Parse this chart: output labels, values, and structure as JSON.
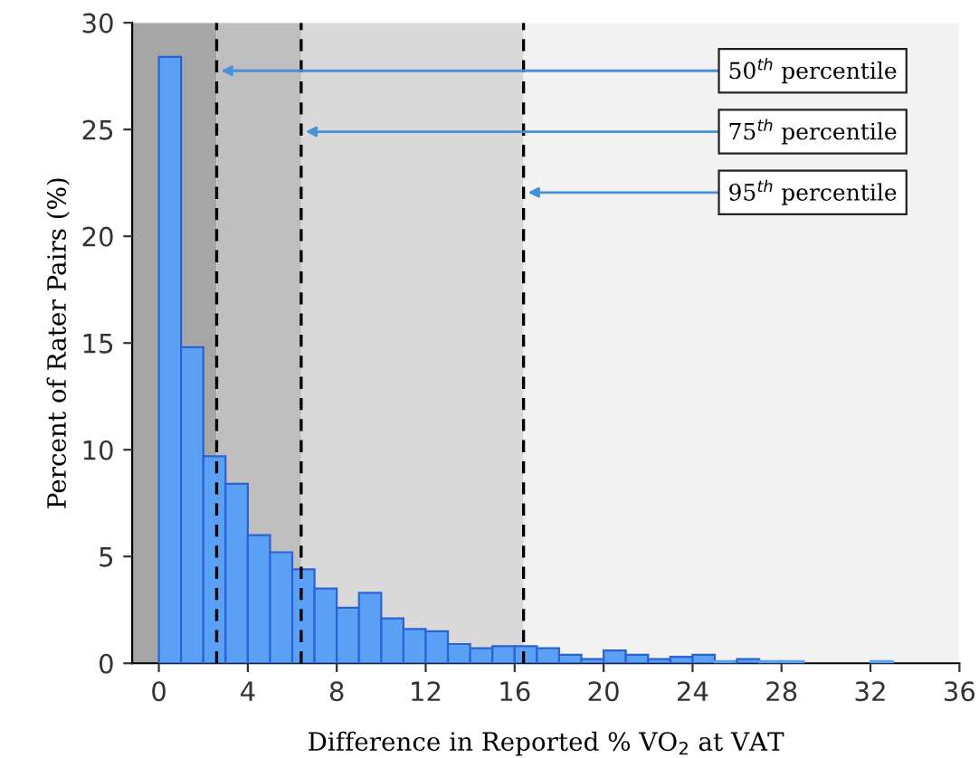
{
  "chart_data": {
    "type": "histogram",
    "xlabel": "Difference in Reported % VO$_{2}$ at VAT",
    "ylabel": "Percent of Rater Pairs (%)",
    "bins": [
      0,
      1,
      2,
      3,
      4,
      5,
      6,
      7,
      8,
      9,
      10,
      11,
      12,
      13,
      14,
      15,
      16,
      17,
      18,
      19,
      20,
      21,
      22,
      23,
      24,
      25,
      26,
      27,
      28,
      29,
      30,
      31,
      32,
      33
    ],
    "values": [
      28.4,
      14.8,
      9.7,
      8.4,
      6.0,
      5.2,
      4.4,
      3.5,
      2.6,
      3.3,
      2.1,
      1.6,
      1.5,
      0.9,
      0.7,
      0.8,
      0.8,
      0.7,
      0.4,
      0.2,
      0.6,
      0.4,
      0.2,
      0.3,
      0.4,
      0.1,
      0.2,
      0.1,
      0.1,
      0,
      0,
      0,
      0.1
    ],
    "color": "#5aa0f5",
    "xlim": [
      -1.2,
      36
    ],
    "ylim": [
      0,
      30
    ],
    "xticks": [
      0,
      4,
      8,
      12,
      16,
      20,
      24,
      28,
      32,
      36
    ],
    "yticks": [
      0,
      5,
      10,
      15,
      20,
      25,
      30
    ],
    "grid": false,
    "bands": [
      {
        "axis": "x",
        "from": -1.2,
        "to": 2.6,
        "color": "#a6a6a6"
      },
      {
        "axis": "x",
        "from": 2.6,
        "to": 6.4,
        "color": "#bfbfbf"
      },
      {
        "axis": "x",
        "from": 6.4,
        "to": 16.4,
        "color": "#d9d9d9"
      },
      {
        "axis": "x",
        "from": 16.4,
        "to": 36,
        "color": "#f2f2f2"
      }
    ],
    "ref_lines": [
      {
        "axis": "x",
        "value": 2.6,
        "label": "50$^{th}$ percentile",
        "line_style": "dashed",
        "color": "#000000"
      },
      {
        "axis": "x",
        "value": 6.4,
        "label": "75$^{th}$ percentile",
        "line_style": "dashed",
        "color": "#000000"
      },
      {
        "axis": "x",
        "value": 16.4,
        "label": "95$^{th}$ percentile",
        "line_style": "dashed",
        "color": "#000000"
      }
    ]
  }
}
